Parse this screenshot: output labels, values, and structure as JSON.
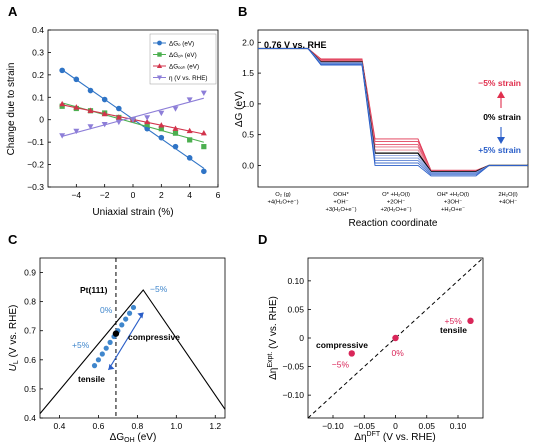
{
  "colors": {
    "dGO": "#2f74c6",
    "dGOH": "#4caf50",
    "dGOOH": "#d2334b",
    "eta": "#8d7ed8",
    "red": "#e0304e",
    "blue": "#2a5ec8",
    "dot_pink": "#d92659",
    "pt_blue": "#3f86cc"
  },
  "panels": {
    "A": {
      "letter": "A"
    },
    "B": {
      "letter": "B"
    },
    "C": {
      "letter": "C"
    },
    "D": {
      "letter": "D"
    }
  },
  "chart_data": [
    {
      "panel": "A",
      "type": "scatter",
      "xlabel": "Uniaxial strain (%)",
      "ylabel": "Change due to strain",
      "xlim": [
        -6,
        6
      ],
      "ylim": [
        -0.3,
        0.4
      ],
      "xticks": [
        "−4",
        "−2",
        "0",
        "2",
        "4",
        "6"
      ],
      "yticks": [
        "−0.3",
        "−0.2",
        "−0.1",
        "0",
        "0.1",
        "0.2",
        "0.3",
        "0.4"
      ],
      "legend_position": "top-right",
      "x": [
        -5,
        -4,
        -3,
        -2,
        -1,
        0,
        1,
        2,
        3,
        4,
        5
      ],
      "series": [
        {
          "name": "ΔG$_O$ (eV)",
          "display": "ΔGₒ (eV)",
          "marker": "circle",
          "color_key": "dGO",
          "values": [
            0.22,
            0.18,
            0.13,
            0.09,
            0.05,
            0.0,
            -0.04,
            -0.08,
            -0.12,
            -0.17,
            -0.23
          ]
        },
        {
          "name": "ΔG$_{OH}$ (eV)",
          "display": "ΔGₒₕ (eV)",
          "marker": "square",
          "color_key": "dGOH",
          "values": [
            0.06,
            0.05,
            0.04,
            0.03,
            0.01,
            0.0,
            -0.02,
            -0.04,
            -0.06,
            -0.09,
            -0.12
          ]
        },
        {
          "name": "ΔG$_{OOH}$ (eV)",
          "display": "ΔGₒₒₕ (eV)",
          "marker": "triangle",
          "color_key": "dGOOH",
          "values": [
            0.07,
            0.055,
            0.04,
            0.025,
            0.01,
            0.0,
            -0.01,
            -0.025,
            -0.04,
            -0.05,
            -0.06
          ]
        },
        {
          "name": "η (V vs. RHE)",
          "display": "η (V vs. RHE)",
          "marker": "triangle-down",
          "color_key": "eta",
          "values": [
            -0.07,
            -0.05,
            -0.03,
            -0.02,
            -0.01,
            0.0,
            0.01,
            0.03,
            0.05,
            0.09,
            0.12
          ]
        }
      ]
    },
    {
      "panel": "B",
      "type": "line",
      "title_note": "0.76 V vs. RHE",
      "ylabel": "ΔG (eV)",
      "xlabel": "Reaction coordinate",
      "ylim": [
        -0.35,
        2.2
      ],
      "yticks": [
        "0.0",
        "0.5",
        "1.0",
        "1.5",
        "2.0"
      ],
      "steps": [
        {
          "lines": [
            "O₂ (g)",
            "+4(H₂O+e⁻)"
          ]
        },
        {
          "lines": [
            "OOH*",
            "+OH⁻",
            "+3(H₂O+e⁻)"
          ]
        },
        {
          "lines": [
            "O* +H₂O(l)",
            "+2OH⁻",
            "+2(H₂O+e⁻)"
          ]
        },
        {
          "lines": [
            "OH* +H₂O(l)",
            "+3OH⁻",
            "+H₂O+e⁻"
          ]
        },
        {
          "lines": [
            "2H₂O(l)",
            "+4OH⁻"
          ]
        }
      ],
      "strain_levels": [
        {
          "strain": "-5%",
          "values": [
            1.9,
            1.73,
            0.43,
            -0.08,
            0.0
          ]
        },
        {
          "strain": "-4%",
          "values": [
            1.9,
            1.72,
            0.39,
            -0.08,
            0.0
          ]
        },
        {
          "strain": "-3%",
          "values": [
            1.9,
            1.71,
            0.34,
            -0.09,
            0.0
          ]
        },
        {
          "strain": "-2%",
          "values": [
            1.9,
            1.7,
            0.3,
            -0.09,
            0.0
          ]
        },
        {
          "strain": "-1%",
          "values": [
            1.9,
            1.69,
            0.25,
            -0.1,
            0.0
          ]
        },
        {
          "strain": "0%",
          "values": [
            1.9,
            1.68,
            0.2,
            -0.1,
            0.0
          ]
        },
        {
          "strain": "+1%",
          "values": [
            1.9,
            1.67,
            0.16,
            -0.11,
            0.0
          ]
        },
        {
          "strain": "+2%",
          "values": [
            1.9,
            1.66,
            0.12,
            -0.12,
            0.0
          ]
        },
        {
          "strain": "+3%",
          "values": [
            1.9,
            1.65,
            0.08,
            -0.13,
            0.0
          ]
        },
        {
          "strain": "+4%",
          "values": [
            1.9,
            1.64,
            0.04,
            -0.15,
            0.0
          ]
        },
        {
          "strain": "+5%",
          "values": [
            1.9,
            1.63,
            0.0,
            -0.17,
            0.0
          ]
        }
      ],
      "annotations": [
        "−5% strain",
        "0% strain",
        "+5% strain"
      ]
    },
    {
      "panel": "C",
      "type": "line",
      "xlabel": "ΔG",
      "xlabel_sub": "OH",
      "xlabel_unit": " (eV)",
      "ylabel_main": "U",
      "ylabel_sub": "L",
      "ylabel_unit": " (V vs. RHE)",
      "xlim": [
        0.3,
        1.25
      ],
      "ylim": [
        0.4,
        0.95
      ],
      "xticks": [
        "0.4",
        "0.6",
        "0.8",
        "1.0",
        "1.2"
      ],
      "yticks": [
        "0.4",
        "0.5",
        "0.6",
        "0.7",
        "0.8",
        "0.9"
      ],
      "volcano": [
        [
          0.3,
          0.415
        ],
        [
          0.83,
          0.84
        ],
        [
          1.25,
          0.43
        ]
      ],
      "dashed_x": 0.69,
      "points_x": [
        0.58,
        0.6,
        0.62,
        0.64,
        0.66,
        0.68,
        0.7,
        0.72,
        0.74,
        0.76,
        0.78
      ],
      "points_y": [
        0.58,
        0.6,
        0.62,
        0.64,
        0.66,
        0.68,
        0.7,
        0.72,
        0.74,
        0.76,
        0.78
      ],
      "pt111": [
        0.69,
        0.69
      ],
      "labels": {
        "pt": "Pt(111)",
        "minus5": "−5%",
        "zero": "0%",
        "plus5": "+5%",
        "compressive": "compressive",
        "tensile": "tensile"
      }
    },
    {
      "panel": "D",
      "type": "scatter",
      "xlabel_main": "Δη",
      "xlabel_sup": "DFT",
      "xlabel_unit": " (V vs. RHE)",
      "ylabel_main": "Δη",
      "ylabel_sup": "Expt.",
      "ylabel_unit": " (V vs. RHE)",
      "xlim": [
        -0.14,
        0.14
      ],
      "ylim": [
        -0.14,
        0.14
      ],
      "xticks": [
        "−0.10",
        "−0.05",
        "0",
        "0.05",
        "0.10"
      ],
      "yticks": [
        "−0.10",
        "−0.05",
        "0",
        "0.05",
        "0.10"
      ],
      "points": [
        {
          "label": "−5%",
          "x": -0.07,
          "y": -0.027
        },
        {
          "label": "0%",
          "x": 0.0,
          "y": 0.0
        },
        {
          "label": "+5%",
          "x": 0.12,
          "y": 0.03
        }
      ],
      "texts": {
        "compressive": "compressive",
        "tensile": "tensile"
      }
    }
  ]
}
